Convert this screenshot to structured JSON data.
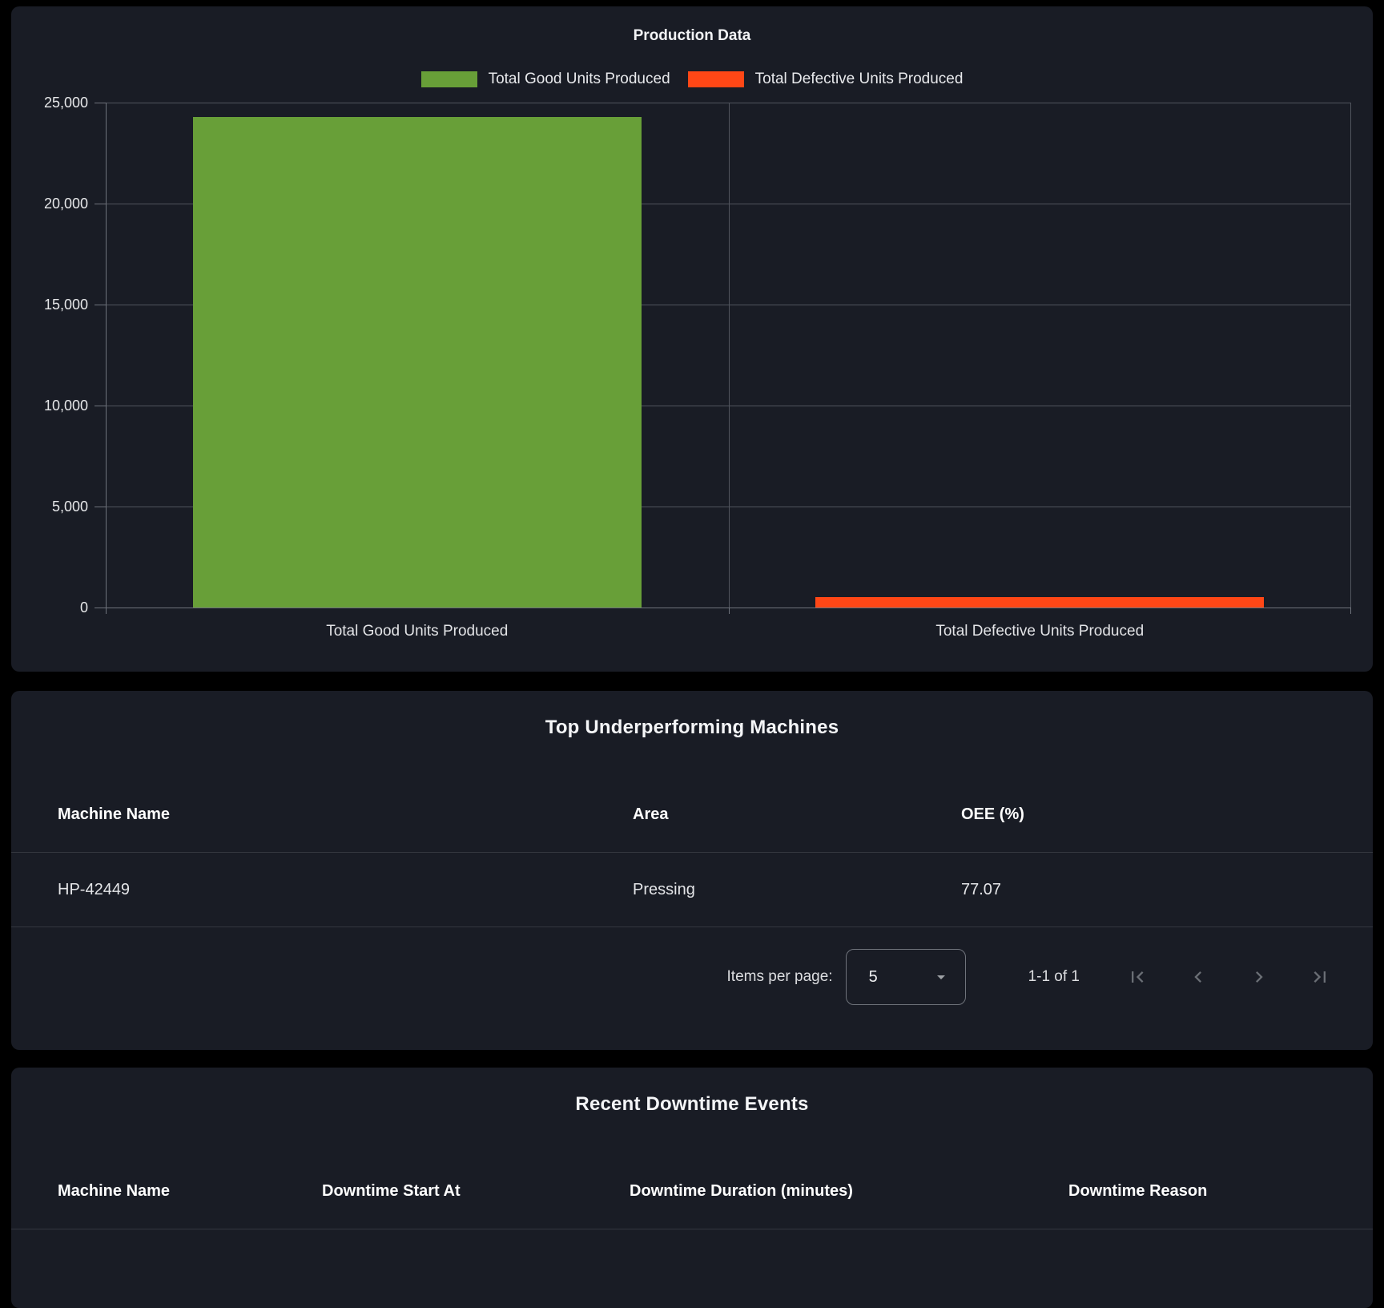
{
  "chart_data": {
    "type": "bar",
    "title": "Production Data",
    "categories": [
      "Total Good Units Produced",
      "Total Defective Units Produced"
    ],
    "values": [
      24300,
      500
    ],
    "colors": [
      "#689F38",
      "#FF4716"
    ],
    "legend": [
      "Total Good Units Produced",
      "Total Defective Units Produced"
    ],
    "legend_position": "top",
    "grid": true,
    "ylim": [
      0,
      25000
    ],
    "yticks": [
      "25,000",
      "20,000",
      "15,000",
      "10,000",
      "5,000",
      "0"
    ],
    "xlabel": "",
    "ylabel": ""
  },
  "machines_card": {
    "title": "Top Underperforming Machines",
    "columns": [
      "Machine Name",
      "Area",
      "OEE (%)"
    ],
    "rows": [
      [
        "HP-42449",
        "Pressing",
        "77.07"
      ]
    ],
    "paginator": {
      "items_per_page_label": "Items per page:",
      "page_size": "5",
      "range_label": "1-1 of 1",
      "icons": {
        "select_caret": "dropdown-arrow",
        "first": "first-page",
        "previous": "previous-page",
        "next": "next-page",
        "last": "last-page"
      }
    }
  },
  "downtime_card": {
    "title": "Recent Downtime Events",
    "columns": [
      "Machine Name",
      "Downtime Start At",
      "Downtime Duration (minutes)",
      "Downtime Reason"
    ],
    "rows": []
  },
  "colors": {
    "page_background": "#000000",
    "card_background": "#191C25",
    "gridline": "#50545D",
    "axis": "#6E727B",
    "text_primary": "#F2F3F5",
    "text_secondary": "#E4E5E8",
    "icon_disabled": "#6A6E75",
    "good_units": "#689F38",
    "defective_units": "#FF4716"
  }
}
